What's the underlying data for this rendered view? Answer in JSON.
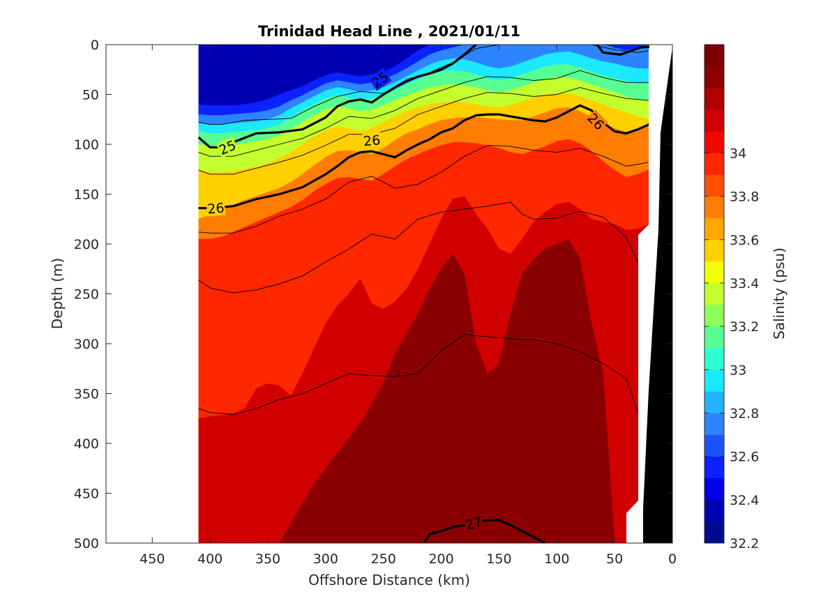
{
  "chart_data": {
    "type": "heatmap",
    "subtype": "filled-contour-section",
    "title": "Trinidad Head Line , 2021/01/11",
    "xlabel": "Offshore Distance (km)",
    "ylabel": "Depth (m)",
    "x_reversed": true,
    "y_reversed": true,
    "xlim": [
      490,
      0
    ],
    "ylim": [
      0,
      500
    ],
    "x_ticks": [
      "450",
      "400",
      "350",
      "300",
      "250",
      "200",
      "150",
      "100",
      "50",
      "0"
    ],
    "x_tick_values": [
      450,
      400,
      350,
      300,
      250,
      200,
      150,
      100,
      50,
      0
    ],
    "y_ticks": [
      "0",
      "50",
      "100",
      "150",
      "200",
      "250",
      "300",
      "350",
      "400",
      "450",
      "500"
    ],
    "y_tick_values": [
      0,
      50,
      100,
      150,
      200,
      250,
      300,
      350,
      400,
      450,
      500
    ],
    "colorbar": {
      "label": "Salinity (psu)",
      "range": [
        32.2,
        34.5
      ],
      "step": 0.1,
      "tick_labels": [
        "32.2",
        "32.4",
        "32.6",
        "32.8",
        "33",
        "33.2",
        "33.4",
        "33.6",
        "33.8",
        "34"
      ],
      "tick_values": [
        32.2,
        32.4,
        32.6,
        32.8,
        33.0,
        33.2,
        33.4,
        33.6,
        33.8,
        34.0
      ],
      "colors": [
        "#000a8f",
        "#0000b3",
        "#0000e6",
        "#0b22ff",
        "#1c52ff",
        "#2d84ff",
        "#22b4ff",
        "#1ce8ff",
        "#2cffd0",
        "#57ff93",
        "#8cff5c",
        "#c3ff2d",
        "#f2ff07",
        "#ffd000",
        "#ffa800",
        "#ff7d00",
        "#ff4f00",
        "#ff2700",
        "#f00800",
        "#d10000",
        "#b00000",
        "#8a0000",
        "#7d0000"
      ]
    },
    "data_extent_km": [
      410,
      20
    ],
    "data_bottom_depth_m": 500,
    "salinity_layers": [
      {
        "value": 32.3,
        "upper_depth": [
          0,
          0,
          0,
          0,
          0,
          0,
          0,
          0,
          0,
          0,
          0,
          0,
          0,
          0,
          0,
          0,
          0,
          0,
          0,
          0,
          0,
          0,
          0,
          0,
          0,
          0,
          0,
          0,
          0,
          0,
          0,
          0,
          0,
          0,
          0,
          0,
          0,
          0,
          0,
          0
        ]
      },
      {
        "value": 32.5,
        "upper_depth": [
          60,
          61,
          61,
          61,
          60,
          58,
          55,
          50,
          46,
          42,
          36,
          31,
          28,
          30,
          32,
          30,
          28,
          22,
          14,
          6,
          0,
          0,
          0,
          0,
          0,
          0,
          0,
          0,
          0,
          0,
          0,
          0,
          0,
          0,
          0,
          0,
          0,
          0,
          0,
          0
        ]
      },
      {
        "value": 32.7,
        "upper_depth": [
          70,
          71,
          71,
          70,
          69,
          68,
          66,
          62,
          56,
          51,
          45,
          39,
          36,
          38,
          40,
          38,
          35,
          30,
          24,
          17,
          10,
          6,
          3,
          0,
          0,
          0,
          0,
          0,
          0,
          0,
          0,
          0,
          0,
          0,
          0,
          0,
          3,
          6,
          4,
          0
        ]
      },
      {
        "value": 32.9,
        "upper_depth": [
          78,
          80,
          80,
          79,
          78,
          77,
          75,
          71,
          64,
          58,
          52,
          46,
          43,
          45,
          48,
          46,
          43,
          38,
          32,
          26,
          20,
          16,
          14,
          15,
          18,
          22,
          24,
          22,
          18,
          14,
          10,
          8,
          7,
          10,
          14,
          17,
          19,
          22,
          24,
          24
        ]
      },
      {
        "value": 33.1,
        "upper_depth": [
          87,
          89,
          89,
          88,
          87,
          86,
          84,
          80,
          73,
          66,
          60,
          54,
          51,
          53,
          56,
          54,
          51,
          46,
          40,
          35,
          30,
          27,
          26,
          27,
          30,
          34,
          36,
          34,
          30,
          26,
          22,
          20,
          20,
          23,
          27,
          31,
          34,
          37,
          39,
          40
        ]
      },
      {
        "value": 33.3,
        "upper_depth": [
          100,
          102,
          102,
          101,
          99,
          97,
          95,
          91,
          85,
          78,
          71,
          65,
          62,
          64,
          67,
          65,
          61,
          56,
          51,
          47,
          43,
          41,
          40,
          41,
          43,
          46,
          48,
          46,
          42,
          38,
          35,
          33,
          33,
          36,
          40,
          44,
          48,
          52,
          55,
          57
        ]
      },
      {
        "value": 33.5,
        "upper_depth": [
          125,
          128,
          128,
          127,
          125,
          122,
          119,
          114,
          108,
          100,
          92,
          86,
          82,
          84,
          87,
          84,
          78,
          72,
          67,
          63,
          60,
          58,
          57,
          58,
          60,
          62,
          63,
          61,
          57,
          53,
          50,
          49,
          49,
          52,
          56,
          60,
          64,
          68,
          72,
          75
        ]
      },
      {
        "value": 33.7,
        "upper_depth": [
          175,
          171,
          166,
          161,
          156,
          152,
          148,
          144,
          138,
          130,
          121,
          113,
          107,
          106,
          108,
          110,
          104,
          96,
          89,
          85,
          80,
          76,
          74,
          73,
          73,
          74,
          75,
          76,
          76,
          72,
          68,
          64,
          63,
          67,
          73,
          79,
          84,
          88,
          86,
          82
        ]
      },
      {
        "value": 33.9,
        "upper_depth": [
          195,
          195,
          193,
          188,
          183,
          178,
          173,
          168,
          163,
          156,
          147,
          140,
          134,
          133,
          135,
          137,
          130,
          122,
          115,
          110,
          105,
          101,
          98,
          98,
          99,
          101,
          104,
          108,
          110,
          106,
          102,
          97,
          95,
          99,
          107,
          117,
          126,
          133,
          130,
          125
        ]
      },
      {
        "value": 34.1,
        "upper_depth": [
          375,
          373,
          372,
          370,
          365,
          345,
          340,
          342,
          352,
          330,
          305,
          280,
          262,
          250,
          235,
          260,
          265,
          258,
          245,
          225,
          200,
          175,
          155,
          152,
          170,
          185,
          205,
          210,
          195,
          178,
          168,
          160,
          158,
          165,
          175,
          178,
          180,
          186,
          185,
          180
        ]
      },
      {
        "value": 34.3,
        "upper_depth": [
          500,
          500,
          500,
          500,
          500,
          500,
          500,
          500,
          480,
          460,
          440,
          425,
          410,
          395,
          380,
          360,
          340,
          310,
          290,
          270,
          245,
          225,
          210,
          230,
          300,
          330,
          320,
          270,
          230,
          215,
          205,
          200,
          195,
          215,
          280,
          330,
          500,
          500,
          500,
          500
        ]
      }
    ],
    "contours": [
      {
        "label": "25",
        "bold": true,
        "label_positions": [
          [
            385,
            103
          ],
          [
            253,
            35
          ]
        ],
        "x": [
          410,
          400,
          390,
          380,
          360,
          340,
          320,
          300,
          290,
          280,
          270,
          260,
          250,
          240,
          230,
          220,
          210,
          200,
          190,
          180,
          170
        ],
        "y": [
          93,
          103,
          103,
          98,
          89,
          88,
          85,
          73,
          62,
          57,
          55,
          58,
          50,
          43,
          37,
          32,
          29,
          25,
          19,
          10,
          0
        ]
      },
      {
        "label": "",
        "bold": true,
        "label_positions": [],
        "x": [
          65,
          60,
          45,
          35,
          28,
          20
        ],
        "y": [
          0,
          8,
          10,
          6,
          3,
          2
        ]
      },
      {
        "label": "26",
        "bold": true,
        "label_positions": [
          [
            395,
            164
          ],
          [
            260,
            96
          ],
          [
            66,
            77
          ]
        ],
        "x": [
          410,
          400,
          380,
          360,
          340,
          320,
          300,
          290,
          280,
          270,
          260,
          250,
          240,
          230,
          220,
          210,
          200,
          190,
          180,
          170,
          160,
          150,
          140,
          130,
          120,
          110,
          100,
          90,
          80,
          70,
          60,
          50,
          40,
          30,
          20
        ],
        "y": [
          164,
          164,
          162,
          155,
          150,
          143,
          130,
          122,
          113,
          108,
          107,
          110,
          113,
          106,
          100,
          95,
          88,
          84,
          76,
          71,
          70,
          70,
          72,
          74,
          76,
          77,
          73,
          67,
          61,
          66,
          78,
          87,
          89,
          85,
          80
        ]
      },
      {
        "label": "27",
        "bold": true,
        "label_positions": [
          [
            172,
            480
          ]
        ],
        "x": [
          215,
          210,
          200,
          190,
          180,
          170,
          160,
          150,
          140,
          130,
          120,
          110
        ],
        "y": [
          500,
          491,
          488,
          484,
          482,
          479,
          477,
          477,
          482,
          488,
          494,
          500
        ]
      }
    ],
    "thin_contours": [
      {
        "x": [
          410,
          400,
          390,
          370,
          350,
          330,
          310,
          290,
          270,
          250,
          230,
          210,
          190,
          170,
          150,
          130,
          110,
          90,
          70,
          50,
          30,
          20
        ],
        "y": [
          78,
          80,
          80,
          76,
          75,
          74,
          62,
          52,
          47,
          49,
          35,
          28,
          18,
          4,
          0,
          0,
          0,
          0,
          0,
          5,
          8,
          6
        ]
      },
      {
        "x": [
          410,
          400,
          380,
          360,
          340,
          320,
          300,
          280,
          260,
          240,
          220,
          200,
          180,
          160,
          140,
          120,
          100,
          80,
          60,
          40,
          20
        ],
        "y": [
          108,
          112,
          112,
          106,
          100,
          94,
          84,
          72,
          74,
          66,
          54,
          46,
          38,
          32,
          33,
          36,
          34,
          26,
          33,
          38,
          38
        ]
      },
      {
        "x": [
          410,
          400,
          380,
          360,
          340,
          320,
          300,
          280,
          260,
          240,
          220,
          200,
          180,
          160,
          140,
          120,
          100,
          80,
          60,
          40,
          20
        ],
        "y": [
          126,
          130,
          130,
          124,
          118,
          111,
          101,
          90,
          90,
          84,
          70,
          62,
          54,
          48,
          49,
          52,
          50,
          43,
          49,
          54,
          56
        ]
      },
      {
        "x": [
          410,
          400,
          380,
          360,
          340,
          320,
          300,
          280,
          260,
          240,
          220,
          200,
          180,
          160,
          140,
          120,
          100,
          80,
          60,
          40,
          20
        ],
        "y": [
          188,
          189,
          189,
          182,
          172,
          165,
          155,
          138,
          132,
          144,
          140,
          128,
          112,
          101,
          102,
          106,
          108,
          104,
          112,
          122,
          118
        ]
      },
      {
        "x": [
          410,
          400,
          380,
          360,
          340,
          320,
          300,
          280,
          260,
          240,
          220,
          200,
          180,
          160,
          140,
          130,
          120,
          100,
          80,
          60,
          40,
          30,
          25
        ],
        "y": [
          236,
          244,
          249,
          246,
          240,
          232,
          218,
          205,
          190,
          195,
          175,
          168,
          165,
          162,
          158,
          170,
          175,
          174,
          167,
          173,
          193,
          218,
          218
        ]
      },
      {
        "x": [
          410,
          400,
          380,
          360,
          340,
          320,
          300,
          280,
          260,
          240,
          220,
          210,
          200,
          180,
          160,
          140,
          130,
          120,
          100,
          80,
          60,
          40,
          25
        ],
        "y": [
          365,
          369,
          371,
          365,
          356,
          350,
          340,
          330,
          332,
          333,
          330,
          318,
          307,
          291,
          293,
          295,
          296,
          296,
          300,
          308,
          320,
          335,
          385
        ]
      }
    ]
  }
}
